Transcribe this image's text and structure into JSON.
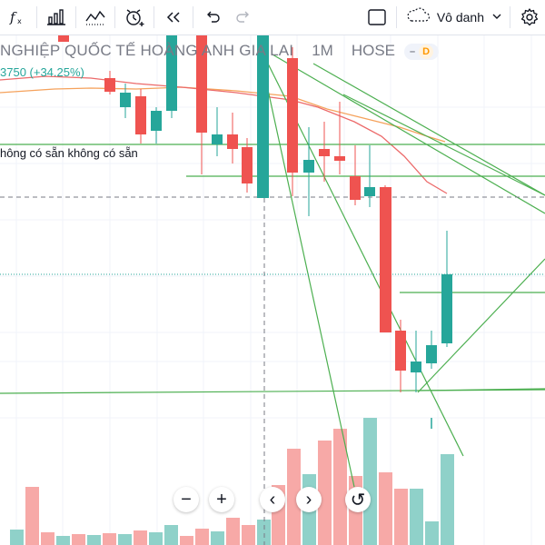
{
  "toolbar": {
    "icons": [
      "function-icon",
      "bar-chart-icon",
      "indicators-icon",
      "alert-icon",
      "replay-icon",
      "undo-icon",
      "redo-icon"
    ],
    "layout_label": "Vô danh"
  },
  "legend": {
    "symbol_name": "NGHIỆP QUỐC TẾ HOÀNG ANH GIA LAI",
    "interval": "1M",
    "exchange": "HOSE",
    "badge_dash": "–",
    "badge_d": "D",
    "change_text": "3750 (+34.25%)",
    "indicator_text": "hông có sẵn  không có sẵn"
  },
  "colors": {
    "up": "#26a69a",
    "down": "#ef5350",
    "up_volume": "#8fd1c9",
    "down_volume": "#f7a9a7",
    "trendline": "#4caf50",
    "ma_orange": "#f5a25c",
    "ma_red": "#ec6a6a"
  },
  "navigation": {
    "zoom_out": "−",
    "zoom_in": "+",
    "scroll_left": "‹",
    "scroll_right": "›",
    "reset": "↺"
  }
}
